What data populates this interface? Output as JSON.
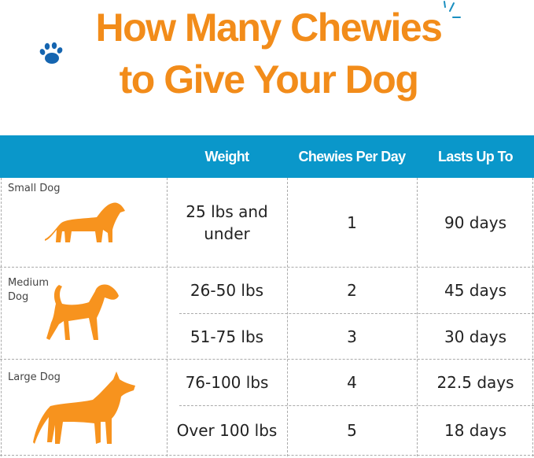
{
  "title": {
    "line1": "How Many Chewies",
    "line2": "to Give Your Dog"
  },
  "colors": {
    "title": "#f28c1a",
    "header": "#0a97ca",
    "dog": "#f7931e",
    "paw": "#1565b0"
  },
  "icons": [
    "paw-icon",
    "sparkle-icon",
    "small-dog-icon",
    "medium-dog-icon",
    "large-dog-icon"
  ],
  "table": {
    "headers": [
      "",
      "Weight",
      "Chewies Per Day",
      "Lasts Up To"
    ],
    "groups": [
      {
        "label": "Small Dog",
        "rows": [
          {
            "weight": "25 lbs and under",
            "chewies": "1",
            "lasts": "90 days"
          }
        ]
      },
      {
        "label": "Medium Dog",
        "rows": [
          {
            "weight": "26-50 lbs",
            "chewies": "2",
            "lasts": "45 days"
          },
          {
            "weight": "51-75 lbs",
            "chewies": "3",
            "lasts": "30 days"
          }
        ]
      },
      {
        "label": "Large Dog",
        "rows": [
          {
            "weight": "76-100 lbs",
            "chewies": "4",
            "lasts": "22.5 days"
          },
          {
            "weight": "Over 100 lbs",
            "chewies": "5",
            "lasts": "18 days"
          }
        ]
      }
    ]
  }
}
